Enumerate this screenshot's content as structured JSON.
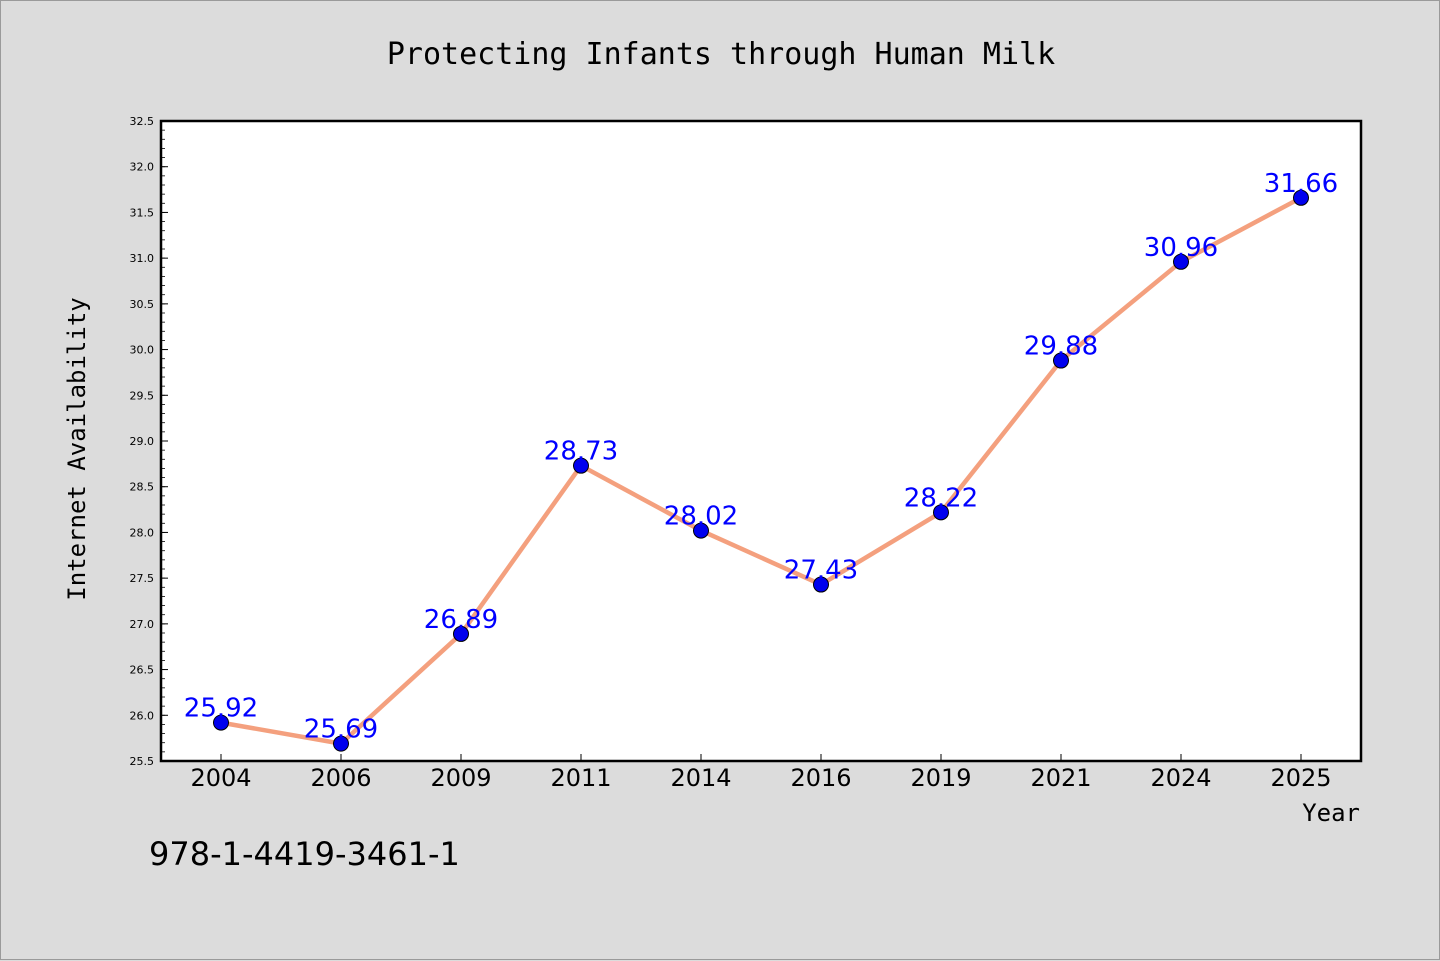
{
  "chart_data": {
    "type": "line",
    "title": "Protecting Infants through Human Milk",
    "xlabel": "Year",
    "ylabel": "Internet Availability",
    "categories": [
      "2004",
      "2006",
      "2009",
      "2011",
      "2014",
      "2016",
      "2019",
      "2021",
      "2024",
      "2025"
    ],
    "values": [
      25.92,
      25.69,
      26.89,
      28.73,
      28.02,
      27.43,
      28.22,
      29.88,
      30.96,
      31.66
    ],
    "data_labels": [
      "25.92",
      "25.69",
      "26.89",
      "28.73",
      "28.02",
      "27.43",
      "28.22",
      "29.88",
      "30.96",
      "31.66"
    ],
    "ylim": [
      25.5,
      32.5
    ],
    "yticks": [
      "25.5",
      "26.0",
      "26.5",
      "27.0",
      "27.5",
      "28.0",
      "28.5",
      "29.0",
      "29.5",
      "30.0",
      "30.5",
      "31.0",
      "31.5",
      "32.0",
      "32.5"
    ],
    "grid": false,
    "line_color": "#f4a07e",
    "marker_color": "#0000ee",
    "label_color": "#0000ff"
  },
  "annotation": "978-1-4419-3461-1"
}
